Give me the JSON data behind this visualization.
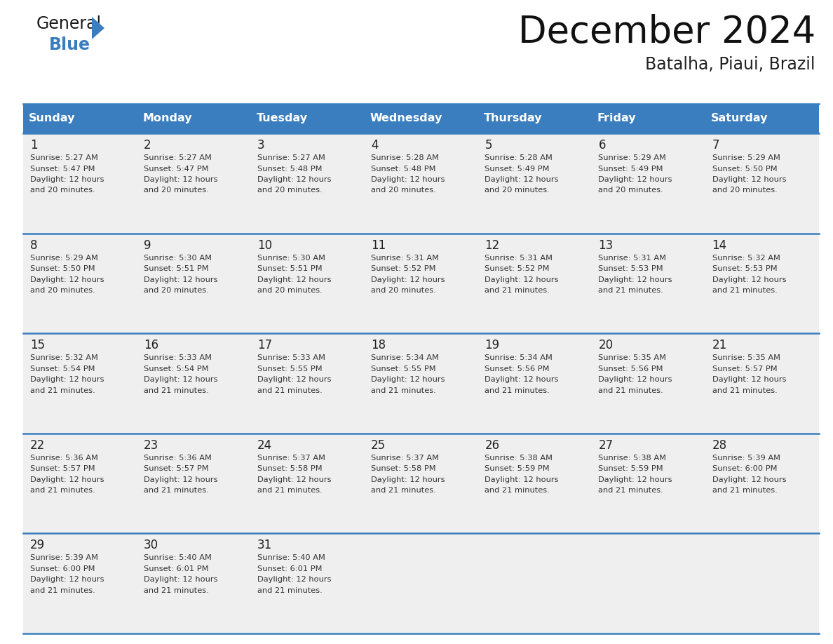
{
  "title": "December 2024",
  "subtitle": "Batalha, Piaui, Brazil",
  "header_color": "#3a7ebf",
  "header_text_color": "#ffffff",
  "cell_bg_color": "#efefef",
  "border_color": "#3a7ebf",
  "text_color": "#333333",
  "days_of_week": [
    "Sunday",
    "Monday",
    "Tuesday",
    "Wednesday",
    "Thursday",
    "Friday",
    "Saturday"
  ],
  "days": [
    {
      "day": 1,
      "col": 0,
      "row": 0,
      "sunrise": "5:27 AM",
      "sunset": "5:47 PM",
      "daylight": "12 hours",
      "daylight2": "and 20 minutes."
    },
    {
      "day": 2,
      "col": 1,
      "row": 0,
      "sunrise": "5:27 AM",
      "sunset": "5:47 PM",
      "daylight": "12 hours",
      "daylight2": "and 20 minutes."
    },
    {
      "day": 3,
      "col": 2,
      "row": 0,
      "sunrise": "5:27 AM",
      "sunset": "5:48 PM",
      "daylight": "12 hours",
      "daylight2": "and 20 minutes."
    },
    {
      "day": 4,
      "col": 3,
      "row": 0,
      "sunrise": "5:28 AM",
      "sunset": "5:48 PM",
      "daylight": "12 hours",
      "daylight2": "and 20 minutes."
    },
    {
      "day": 5,
      "col": 4,
      "row": 0,
      "sunrise": "5:28 AM",
      "sunset": "5:49 PM",
      "daylight": "12 hours",
      "daylight2": "and 20 minutes."
    },
    {
      "day": 6,
      "col": 5,
      "row": 0,
      "sunrise": "5:29 AM",
      "sunset": "5:49 PM",
      "daylight": "12 hours",
      "daylight2": "and 20 minutes."
    },
    {
      "day": 7,
      "col": 6,
      "row": 0,
      "sunrise": "5:29 AM",
      "sunset": "5:50 PM",
      "daylight": "12 hours",
      "daylight2": "and 20 minutes."
    },
    {
      "day": 8,
      "col": 0,
      "row": 1,
      "sunrise": "5:29 AM",
      "sunset": "5:50 PM",
      "daylight": "12 hours",
      "daylight2": "and 20 minutes."
    },
    {
      "day": 9,
      "col": 1,
      "row": 1,
      "sunrise": "5:30 AM",
      "sunset": "5:51 PM",
      "daylight": "12 hours",
      "daylight2": "and 20 minutes."
    },
    {
      "day": 10,
      "col": 2,
      "row": 1,
      "sunrise": "5:30 AM",
      "sunset": "5:51 PM",
      "daylight": "12 hours",
      "daylight2": "and 20 minutes."
    },
    {
      "day": 11,
      "col": 3,
      "row": 1,
      "sunrise": "5:31 AM",
      "sunset": "5:52 PM",
      "daylight": "12 hours",
      "daylight2": "and 20 minutes."
    },
    {
      "day": 12,
      "col": 4,
      "row": 1,
      "sunrise": "5:31 AM",
      "sunset": "5:52 PM",
      "daylight": "12 hours",
      "daylight2": "and 21 minutes."
    },
    {
      "day": 13,
      "col": 5,
      "row": 1,
      "sunrise": "5:31 AM",
      "sunset": "5:53 PM",
      "daylight": "12 hours",
      "daylight2": "and 21 minutes."
    },
    {
      "day": 14,
      "col": 6,
      "row": 1,
      "sunrise": "5:32 AM",
      "sunset": "5:53 PM",
      "daylight": "12 hours",
      "daylight2": "and 21 minutes."
    },
    {
      "day": 15,
      "col": 0,
      "row": 2,
      "sunrise": "5:32 AM",
      "sunset": "5:54 PM",
      "daylight": "12 hours",
      "daylight2": "and 21 minutes."
    },
    {
      "day": 16,
      "col": 1,
      "row": 2,
      "sunrise": "5:33 AM",
      "sunset": "5:54 PM",
      "daylight": "12 hours",
      "daylight2": "and 21 minutes."
    },
    {
      "day": 17,
      "col": 2,
      "row": 2,
      "sunrise": "5:33 AM",
      "sunset": "5:55 PM",
      "daylight": "12 hours",
      "daylight2": "and 21 minutes."
    },
    {
      "day": 18,
      "col": 3,
      "row": 2,
      "sunrise": "5:34 AM",
      "sunset": "5:55 PM",
      "daylight": "12 hours",
      "daylight2": "and 21 minutes."
    },
    {
      "day": 19,
      "col": 4,
      "row": 2,
      "sunrise": "5:34 AM",
      "sunset": "5:56 PM",
      "daylight": "12 hours",
      "daylight2": "and 21 minutes."
    },
    {
      "day": 20,
      "col": 5,
      "row": 2,
      "sunrise": "5:35 AM",
      "sunset": "5:56 PM",
      "daylight": "12 hours",
      "daylight2": "and 21 minutes."
    },
    {
      "day": 21,
      "col": 6,
      "row": 2,
      "sunrise": "5:35 AM",
      "sunset": "5:57 PM",
      "daylight": "12 hours",
      "daylight2": "and 21 minutes."
    },
    {
      "day": 22,
      "col": 0,
      "row": 3,
      "sunrise": "5:36 AM",
      "sunset": "5:57 PM",
      "daylight": "12 hours",
      "daylight2": "and 21 minutes."
    },
    {
      "day": 23,
      "col": 1,
      "row": 3,
      "sunrise": "5:36 AM",
      "sunset": "5:57 PM",
      "daylight": "12 hours",
      "daylight2": "and 21 minutes."
    },
    {
      "day": 24,
      "col": 2,
      "row": 3,
      "sunrise": "5:37 AM",
      "sunset": "5:58 PM",
      "daylight": "12 hours",
      "daylight2": "and 21 minutes."
    },
    {
      "day": 25,
      "col": 3,
      "row": 3,
      "sunrise": "5:37 AM",
      "sunset": "5:58 PM",
      "daylight": "12 hours",
      "daylight2": "and 21 minutes."
    },
    {
      "day": 26,
      "col": 4,
      "row": 3,
      "sunrise": "5:38 AM",
      "sunset": "5:59 PM",
      "daylight": "12 hours",
      "daylight2": "and 21 minutes."
    },
    {
      "day": 27,
      "col": 5,
      "row": 3,
      "sunrise": "5:38 AM",
      "sunset": "5:59 PM",
      "daylight": "12 hours",
      "daylight2": "and 21 minutes."
    },
    {
      "day": 28,
      "col": 6,
      "row": 3,
      "sunrise": "5:39 AM",
      "sunset": "6:00 PM",
      "daylight": "12 hours",
      "daylight2": "and 21 minutes."
    },
    {
      "day": 29,
      "col": 0,
      "row": 4,
      "sunrise": "5:39 AM",
      "sunset": "6:00 PM",
      "daylight": "12 hours",
      "daylight2": "and 21 minutes."
    },
    {
      "day": 30,
      "col": 1,
      "row": 4,
      "sunrise": "5:40 AM",
      "sunset": "6:01 PM",
      "daylight": "12 hours",
      "daylight2": "and 21 minutes."
    },
    {
      "day": 31,
      "col": 2,
      "row": 4,
      "sunrise": "5:40 AM",
      "sunset": "6:01 PM",
      "daylight": "12 hours",
      "daylight2": "and 21 minutes."
    }
  ],
  "num_rows": 5,
  "num_cols": 7,
  "logo_general_color": "#1a1a1a",
  "logo_blue_color": "#3a7ebf",
  "logo_triangle_color": "#3a7ebf"
}
